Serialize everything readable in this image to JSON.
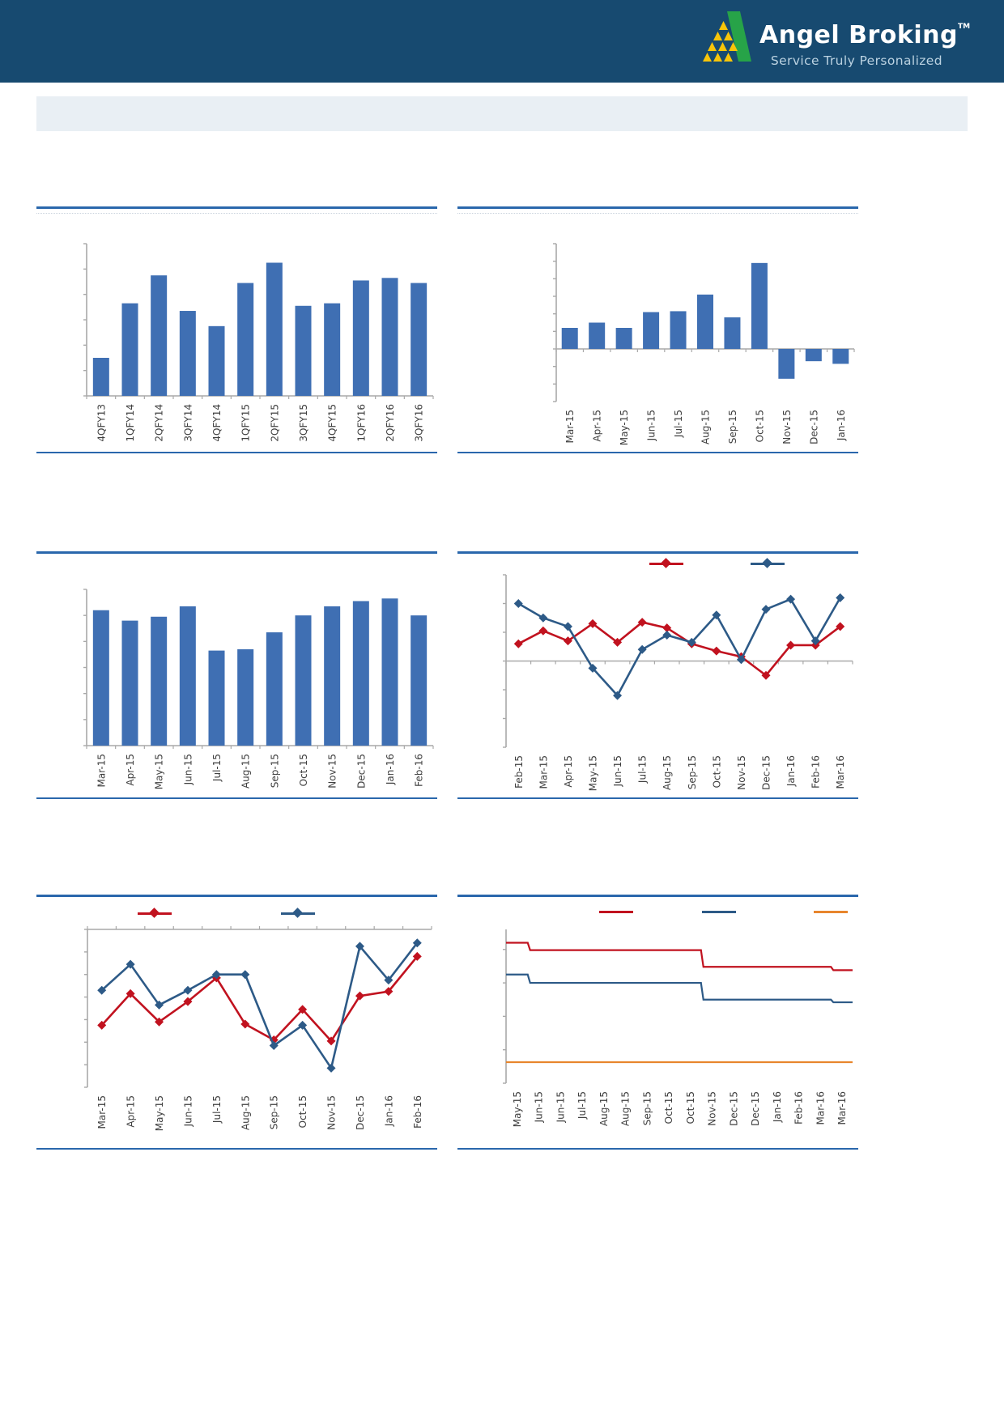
{
  "header": {
    "brand": "Angel Broking",
    "trademark": "TM",
    "tagline": "Service Truly Personalized",
    "bg": "#174A70",
    "logo_green": "#27A348",
    "logo_yellow": "#F7C50A"
  },
  "banner": {
    "bg": "#E9EFF4"
  },
  "colors": {
    "divider": "#2A67AC",
    "bar": "#3F6FB3",
    "line_red": "#C1121F",
    "line_blue": "#2D5A87",
    "line_orange": "#E8862D",
    "axis": "#A9A9A9",
    "label": "#3F3F3F"
  },
  "chart_data": [
    {
      "id": "quarterly-bar",
      "type": "bar",
      "title": "",
      "categories": [
        "4QFY13",
        "1QFY14",
        "2QFY14",
        "3QFY14",
        "4QFY14",
        "1QFY15",
        "2QFY15",
        "3QFY15",
        "4QFY15",
        "1QFY16",
        "2QFY16",
        "3QFY16"
      ],
      "values": [
        1.5,
        3.65,
        4.75,
        3.35,
        2.75,
        4.45,
        5.25,
        3.55,
        3.65,
        4.55,
        4.65,
        4.45
      ],
      "ylim": [
        0,
        6
      ],
      "ytick": 1,
      "xlabel": "",
      "ylabel": "",
      "grid": false,
      "y_axis_labels_visible": false
    },
    {
      "id": "monthly-bar-posneg",
      "type": "bar",
      "title": "",
      "categories": [
        "Mar-15",
        "Apr-15",
        "May-15",
        "Jun-15",
        "Jul-15",
        "Aug-15",
        "Sep-15",
        "Oct-15",
        "Nov-15",
        "Dec-15",
        "Jan-16"
      ],
      "values": [
        1.2,
        1.5,
        1.2,
        2.1,
        2.15,
        3.1,
        1.8,
        4.9,
        -1.7,
        -0.7,
        -0.85
      ],
      "ylim": [
        -3,
        6
      ],
      "ytick": 1,
      "xlabel": "",
      "ylabel": "",
      "grid": false,
      "y_axis_labels_visible": false
    },
    {
      "id": "monthly-bar",
      "type": "bar",
      "title": "",
      "categories": [
        "Mar-15",
        "Apr-15",
        "May-15",
        "Jun-15",
        "Jul-15",
        "Aug-15",
        "Sep-15",
        "Oct-15",
        "Nov-15",
        "Dec-15",
        "Jan-16",
        "Feb-16"
      ],
      "values": [
        5.2,
        4.8,
        4.95,
        5.35,
        3.65,
        3.7,
        4.35,
        5.0,
        5.35,
        5.55,
        5.65,
        5.0
      ],
      "ylim": [
        0,
        6
      ],
      "ytick": 1,
      "xlabel": "",
      "ylabel": "",
      "grid": false,
      "y_axis_labels_visible": false
    },
    {
      "id": "dual-line",
      "type": "line",
      "title": "",
      "categories": [
        "Feb-15",
        "Mar-15",
        "Apr-15",
        "May-15",
        "Jun-15",
        "Jul-15",
        "Aug-15",
        "Sep-15",
        "Oct-15",
        "Nov-15",
        "Dec-15",
        "Jan-16",
        "Feb-16",
        "Mar-16"
      ],
      "series": [
        {
          "name": "red-series",
          "color_key": "line_red",
          "values": [
            0.6,
            1.05,
            0.7,
            1.3,
            0.65,
            1.35,
            1.15,
            0.6,
            0.35,
            0.15,
            -0.5,
            0.55,
            0.55,
            1.2
          ]
        },
        {
          "name": "blue-series",
          "color_key": "line_blue",
          "values": [
            2.0,
            1.5,
            1.2,
            -0.25,
            -1.2,
            0.4,
            0.9,
            0.65,
            1.6,
            0.05,
            1.8,
            2.15,
            0.7,
            2.2
          ]
        }
      ],
      "ylim": [
        -3,
        3
      ],
      "ytick": 1,
      "legend": [
        {
          "name": "red-series",
          "color_key": "line_red",
          "swatch": "line-diamond",
          "label": ""
        },
        {
          "name": "blue-series",
          "color_key": "line_blue",
          "swatch": "line-diamond",
          "label": ""
        }
      ],
      "legend_position": "top",
      "grid": false,
      "y_axis_labels_visible": false
    },
    {
      "id": "dual-line-negative",
      "type": "line",
      "title": "",
      "categories": [
        "Mar-15",
        "Apr-15",
        "May-15",
        "Jun-15",
        "Jul-15",
        "Aug-15",
        "Sep-15",
        "Oct-15",
        "Nov-15",
        "Dec-15",
        "Jan-16",
        "Feb-16"
      ],
      "series": [
        {
          "name": "red-series",
          "color_key": "line_red",
          "values": [
            -4.25,
            -2.85,
            -4.1,
            -3.2,
            -2.15,
            -4.2,
            -4.9,
            -3.55,
            -4.95,
            -2.95,
            -2.75,
            -1.2
          ]
        },
        {
          "name": "blue-series",
          "color_key": "line_blue",
          "values": [
            -2.7,
            -1.55,
            -3.35,
            -2.7,
            -2.0,
            -2.0,
            -5.15,
            -4.25,
            -6.15,
            -0.75,
            -2.25,
            -0.6
          ]
        }
      ],
      "ylim": [
        -7,
        0
      ],
      "ytick": 1,
      "legend": [
        {
          "name": "red-series",
          "color_key": "line_red",
          "swatch": "line-diamond",
          "label": ""
        },
        {
          "name": "blue-series",
          "color_key": "line_blue",
          "swatch": "line-diamond",
          "label": ""
        }
      ],
      "legend_position": "top",
      "grid": false,
      "y_axis_labels_visible": false
    },
    {
      "id": "step-line",
      "type": "line",
      "subtype": "step",
      "title": "",
      "categories": [
        "May-15",
        "Jun-15",
        "Jun-15",
        "Jul-15",
        "Aug-15",
        "Aug-15",
        "Sep-15",
        "Oct-15",
        "Oct-15",
        "Nov-15",
        "Dec-15",
        "Dec-15",
        "Jan-16",
        "Feb-16",
        "Mar-16",
        "Mar-16"
      ],
      "series": [
        {
          "name": "red-series",
          "color_key": "line_red",
          "values": [
            4.2,
            3.98,
            3.98,
            3.98,
            3.98,
            3.98,
            3.98,
            3.98,
            3.98,
            3.48,
            3.48,
            3.48,
            3.48,
            3.48,
            3.48,
            3.38
          ]
        },
        {
          "name": "blue-series",
          "color_key": "line_blue",
          "values": [
            3.25,
            3.0,
            3.0,
            3.0,
            3.0,
            3.0,
            3.0,
            3.0,
            3.0,
            2.5,
            2.5,
            2.5,
            2.5,
            2.5,
            2.5,
            2.42
          ]
        },
        {
          "name": "orange-series",
          "color_key": "line_orange",
          "values": [
            0.63,
            0.63,
            0.63,
            0.63,
            0.63,
            0.63,
            0.63,
            0.63,
            0.63,
            0.63,
            0.63,
            0.63,
            0.63,
            0.63,
            0.63,
            0.63
          ]
        }
      ],
      "ylim": [
        0,
        4.6
      ],
      "ytick": 1,
      "legend": [
        {
          "name": "red-series",
          "color_key": "line_red",
          "swatch": "line",
          "label": ""
        },
        {
          "name": "blue-series",
          "color_key": "line_blue",
          "swatch": "line",
          "label": ""
        },
        {
          "name": "orange-series",
          "color_key": "line_orange",
          "swatch": "line",
          "label": ""
        }
      ],
      "legend_position": "top",
      "grid": false,
      "y_axis_labels_visible": false
    }
  ]
}
